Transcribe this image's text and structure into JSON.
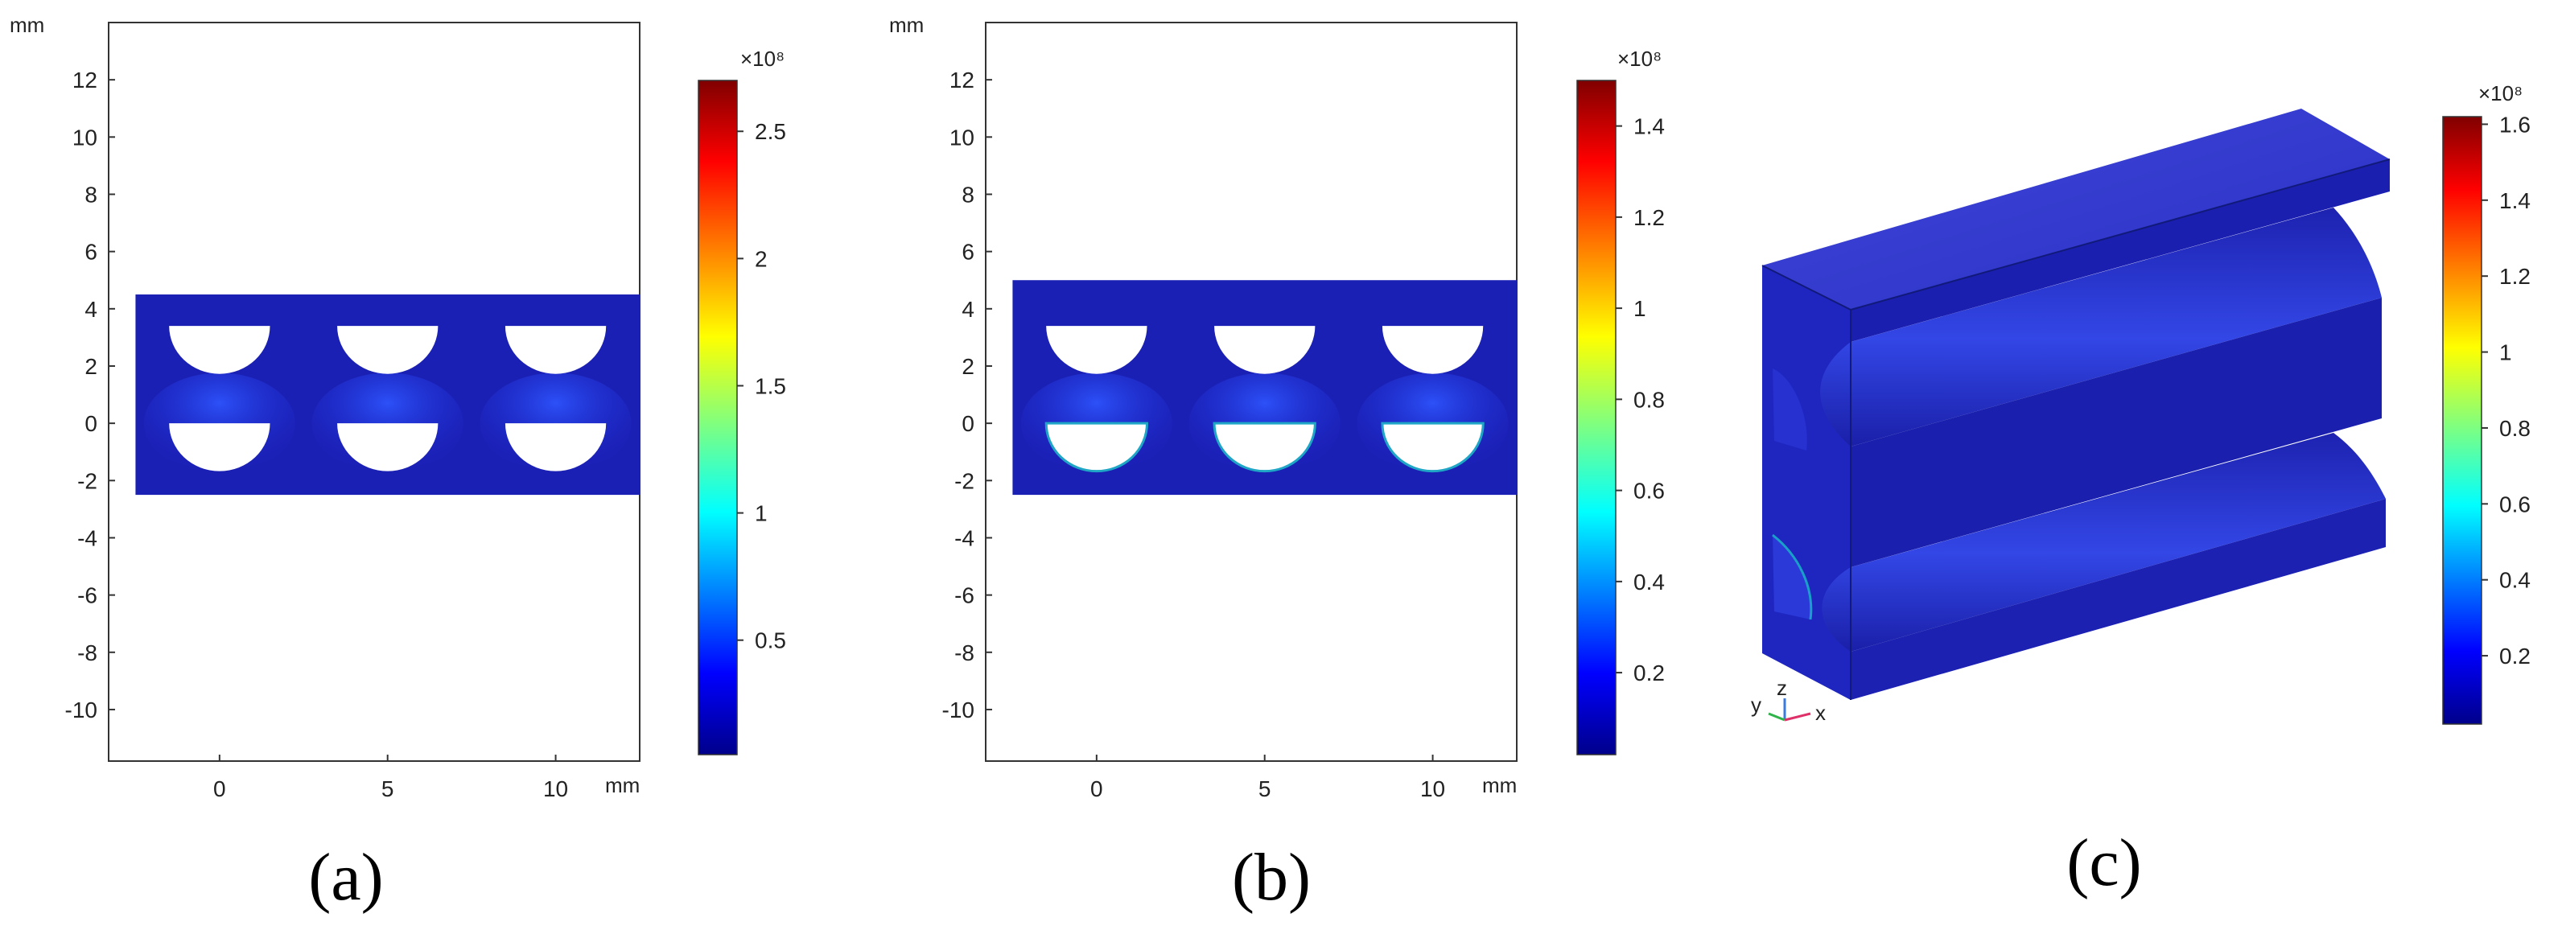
{
  "panels": [
    {
      "id": "a",
      "caption": "(a)",
      "y_unit": "mm",
      "x_unit": "mm",
      "x_ticks": [
        "0",
        "5",
        "10"
      ],
      "y_ticks": [
        "12",
        "10",
        "8",
        "6",
        "4",
        "2",
        "0",
        "-2",
        "-4",
        "-6",
        "-8",
        "-10"
      ],
      "x_range": [
        -3.3,
        12.5
      ],
      "y_range": [
        -11.8,
        14
      ],
      "block_x": [
        -2.5,
        12.5
      ],
      "block_y": [
        -2.5,
        4.5
      ],
      "colorbar": {
        "multiplier": "×10⁸",
        "ticks": [
          "2.5",
          "2",
          "1.5",
          "1",
          "0.5"
        ],
        "tick_values": [
          2.5,
          2,
          1.5,
          1,
          0.5
        ],
        "max": 2.7,
        "min": 0.05
      }
    },
    {
      "id": "b",
      "caption": "(b)",
      "y_unit": "mm",
      "x_unit": "mm",
      "x_ticks": [
        "0",
        "5",
        "10"
      ],
      "y_ticks": [
        "12",
        "10",
        "8",
        "6",
        "4",
        "2",
        "0",
        "-2",
        "-4",
        "-6",
        "-8",
        "-10"
      ],
      "x_range": [
        -3.3,
        12.5
      ],
      "y_range": [
        -11.8,
        14
      ],
      "block_x": [
        -2.5,
        12.5
      ],
      "block_y": [
        -2.5,
        5
      ],
      "colorbar": {
        "multiplier": "×10⁸",
        "ticks": [
          "1.4",
          "1.2",
          "1",
          "0.8",
          "0.6",
          "0.4",
          "0.2"
        ],
        "tick_values": [
          1.4,
          1.2,
          1,
          0.8,
          0.6,
          0.4,
          0.2
        ],
        "max": 1.5,
        "min": 0.02
      }
    },
    {
      "id": "c",
      "caption": "(c)",
      "axis_labels": [
        "y",
        "z",
        "x"
      ],
      "colorbar": {
        "multiplier": "×10⁸",
        "ticks": [
          "1.6",
          "1.4",
          "1.2",
          "1",
          "0.8",
          "0.6",
          "0.4",
          "0.2"
        ],
        "tick_values": [
          1.6,
          1.4,
          1.2,
          1,
          0.8,
          0.6,
          0.4,
          0.2
        ],
        "max": 1.62,
        "min": 0.02
      }
    }
  ]
}
